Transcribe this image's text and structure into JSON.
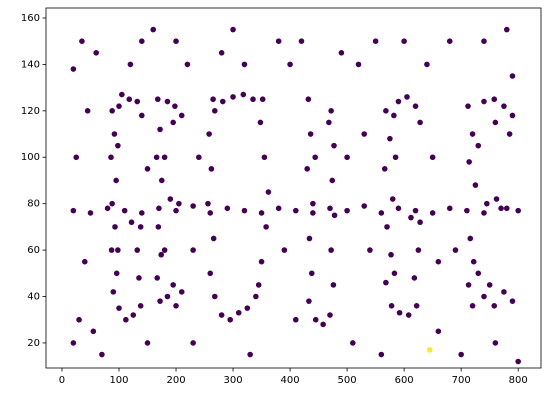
{
  "chart_data": {
    "type": "scatter",
    "xlim": [
      -28,
      840
    ],
    "ylim": [
      9.2,
      164.3
    ],
    "xticks": [
      0,
      100,
      200,
      300,
      400,
      500,
      600,
      700,
      800
    ],
    "yticks": [
      20,
      40,
      60,
      80,
      100,
      120,
      140,
      160
    ],
    "grid": false,
    "series": [
      {
        "color": "#440154",
        "x": [
          20,
          50,
          80,
          110,
          140,
          170,
          200,
          230,
          260,
          290,
          320,
          350,
          380,
          410,
          440,
          470,
          500,
          530,
          560,
          590,
          620,
          650,
          680,
          710,
          740,
          770,
          800,
          88,
          92,
          86,
          95,
          88,
          93,
          87,
          96,
          90,
          100,
          112,
          125,
          138,
          135,
          132,
          138,
          122,
          105,
          118,
          132,
          140,
          100,
          98,
          98,
          168,
          172,
          166,
          175,
          169,
          174,
          167,
          172,
          185,
          198,
          210,
          190,
          205,
          185,
          200,
          210,
          180,
          180,
          195,
          195,
          258,
          262,
          256,
          266,
          260,
          268,
          280,
          295,
          310,
          325,
          340,
          350,
          358,
          362,
          355,
          348,
          335,
          318,
          300,
          282,
          268,
          345,
          352,
          265,
          432,
          436,
          430,
          440,
          434,
          438,
          433,
          445,
          458,
          470,
          476,
          472,
          478,
          474,
          477,
          472,
          444,
          468,
          568,
          575,
          566,
          580,
          570,
          577,
          568,
          578,
          592,
          608,
          622,
          618,
          625,
          628,
          612,
          590,
          605,
          620,
          628,
          582,
          583,
          585,
          712,
          720,
          714,
          725,
          716,
          722,
          713,
          720,
          740,
          758,
          775,
          790,
          745,
          762,
          780,
          740,
          758,
          775,
          790,
          730,
          730,
          785,
          760,
          750,
          20,
          35,
          60,
          45,
          25,
          40,
          30,
          20,
          55,
          70,
          120,
          140,
          160,
          150,
          200,
          220,
          230,
          240,
          280,
          300,
          320,
          330,
          380,
          390,
          400,
          410,
          420,
          490,
          500,
          510,
          520,
          540,
          550,
          560,
          600,
          640,
          650,
          660,
          680,
          690,
          700,
          740,
          760,
          790,
          800,
          780,
          230,
          530,
          660,
          150
        ],
        "y": [
          77,
          76,
          78,
          77,
          76,
          78,
          77,
          79,
          76,
          78,
          77,
          76,
          78,
          77,
          76,
          78,
          77,
          79,
          76,
          78,
          77,
          76,
          78,
          77,
          76,
          78,
          77,
          120,
          110,
          100,
          90,
          80,
          70,
          60,
          50,
          42,
          35,
          30,
          32,
          36,
          48,
          60,
          70,
          72,
          127,
          125,
          124,
          118,
          122,
          60,
          105,
          125,
          112,
          100,
          90,
          70,
          58,
          48,
          38,
          124,
          122,
          118,
          82,
          80,
          40,
          36,
          42,
          100,
          60,
          115,
          45,
          110,
          95,
          80,
          65,
          50,
          40,
          32,
          30,
          33,
          35,
          40,
          55,
          70,
          85,
          100,
          115,
          125,
          127,
          126,
          124,
          120,
          45,
          125,
          125,
          125,
          110,
          95,
          80,
          65,
          50,
          38,
          30,
          28,
          32,
          45,
          60,
          75,
          90,
          105,
          120,
          100,
          115,
          120,
          108,
          95,
          82,
          70,
          58,
          46,
          36,
          33,
          32,
          36,
          48,
          60,
          72,
          74,
          124,
          126,
          122,
          115,
          118,
          50,
          100,
          122,
          110,
          98,
          88,
          65,
          55,
          45,
          36,
          124,
          125,
          122,
          118,
          80,
          82,
          78,
          40,
          36,
          42,
          38,
          105,
          50,
          110,
          115,
          45,
          138,
          150,
          145,
          120,
          100,
          55,
          30,
          20,
          25,
          15,
          140,
          150,
          155,
          20,
          150,
          140,
          20,
          100,
          145,
          155,
          140,
          15,
          150,
          60,
          140,
          30,
          150,
          145,
          100,
          20,
          140,
          60,
          150,
          15,
          150,
          140,
          100,
          25,
          150,
          60,
          15,
          150,
          20,
          135,
          12,
          155,
          60,
          110,
          55,
          95
        ]
      },
      {
        "color": "#fde725",
        "x": [
          645
        ],
        "y": [
          17
        ]
      }
    ]
  }
}
